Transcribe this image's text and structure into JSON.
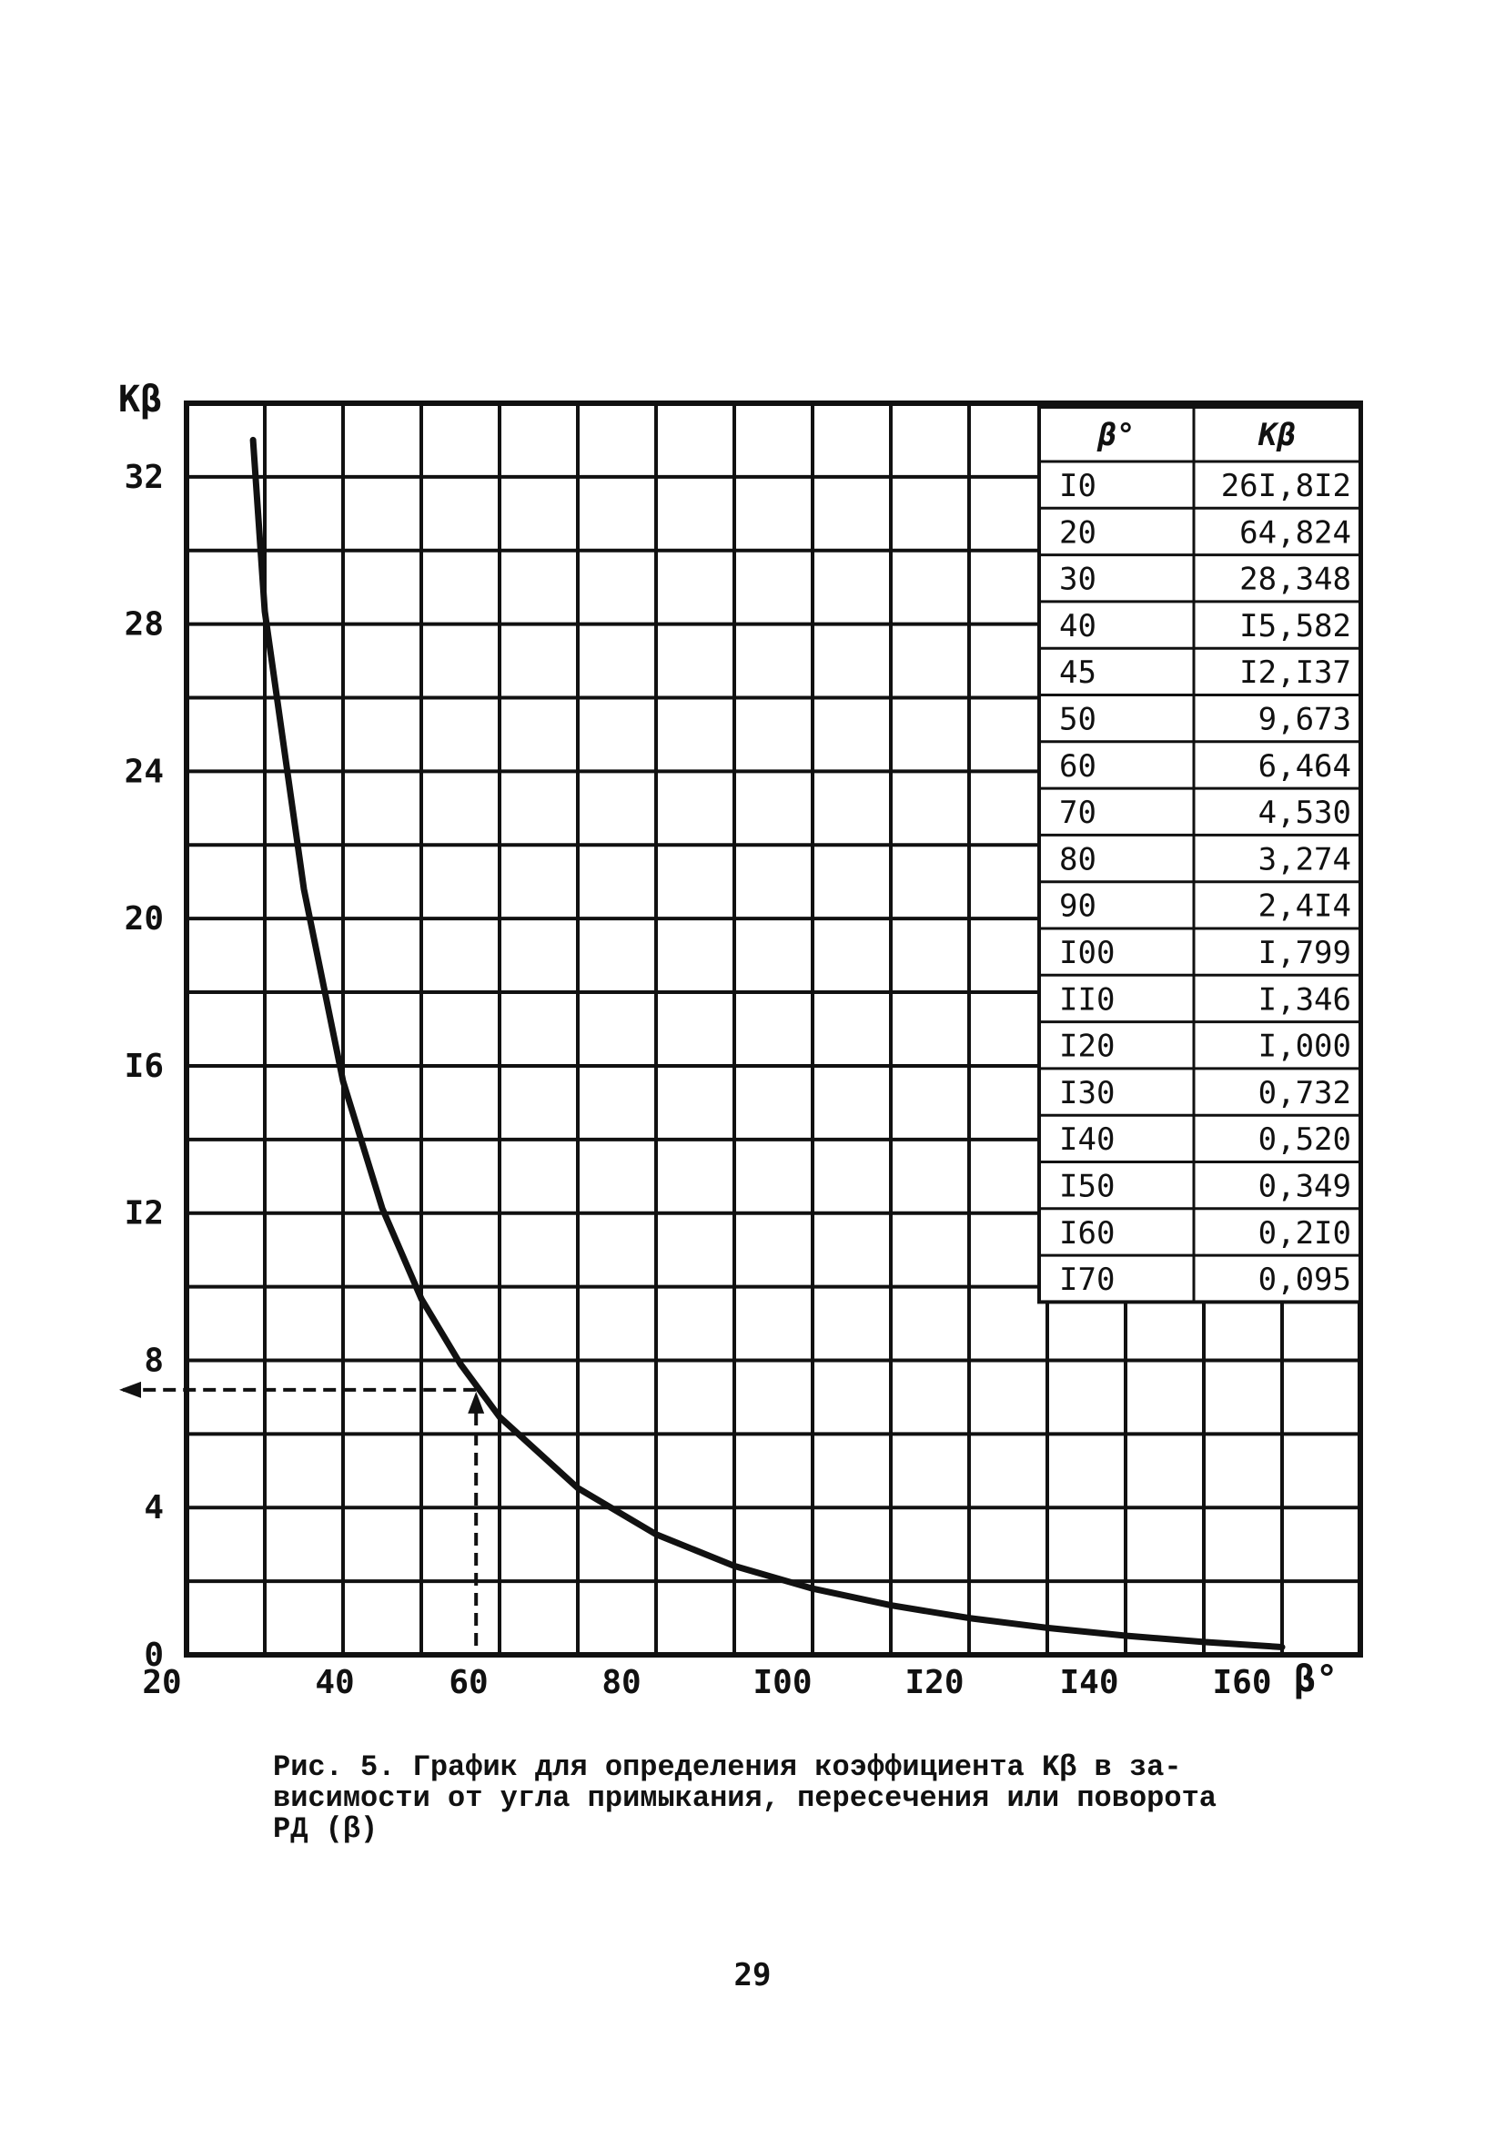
{
  "chart_data": {
    "type": "line",
    "title": "",
    "xlabel": "β°",
    "ylabel": "Kβ",
    "xlim": [
      20,
      170
    ],
    "ylim": [
      0,
      34
    ],
    "grid": true,
    "x_ticks": [
      "20",
      "40",
      "60",
      "80",
      "I00",
      "I20",
      "I40",
      "I60"
    ],
    "y_ticks": [
      "0",
      "4",
      "8",
      "I2",
      "I6",
      "20",
      "24",
      "28",
      "32"
    ],
    "series": [
      {
        "name": "Kβ",
        "x": [
          28.5,
          30,
          35,
          40,
          45,
          50,
          55,
          60,
          70,
          80,
          90,
          100,
          110,
          120,
          130,
          140,
          150,
          160
        ],
        "y": [
          33.0,
          28.348,
          20.8,
          15.582,
          12.137,
          9.673,
          7.9,
          6.464,
          4.53,
          3.274,
          2.414,
          1.799,
          1.346,
          1.0,
          0.732,
          0.52,
          0.349,
          0.21
        ]
      }
    ],
    "annotation": {
      "x": 57,
      "y": 7.2,
      "description": "dashed lines with arrows showing reading of Kβ for β ≈ 57°"
    },
    "table": {
      "headers": [
        "β°",
        "Kβ"
      ],
      "rows": [
        [
          "I0",
          "26I,8I2"
        ],
        [
          "20",
          "64,824"
        ],
        [
          "30",
          "28,348"
        ],
        [
          "40",
          "I5,582"
        ],
        [
          "45",
          "I2,I37"
        ],
        [
          "50",
          "9,673"
        ],
        [
          "60",
          "6,464"
        ],
        [
          "70",
          "4,530"
        ],
        [
          "80",
          "3,274"
        ],
        [
          "90",
          "2,4I4"
        ],
        [
          "I00",
          "I,799"
        ],
        [
          "II0",
          "I,346"
        ],
        [
          "I20",
          "I,000"
        ],
        [
          "I30",
          "0,732"
        ],
        [
          "I40",
          "0,520"
        ],
        [
          "I50",
          "0,349"
        ],
        [
          "I60",
          "0,2I0"
        ],
        [
          "I70",
          "0,095"
        ]
      ]
    }
  },
  "caption": {
    "line1": "Рис. 5. График для определения коэффициента Kβ в за-",
    "line2": "висимости от угла примыкания, пересечения или поворота",
    "line3": "РД (β)"
  },
  "page_number": "29"
}
